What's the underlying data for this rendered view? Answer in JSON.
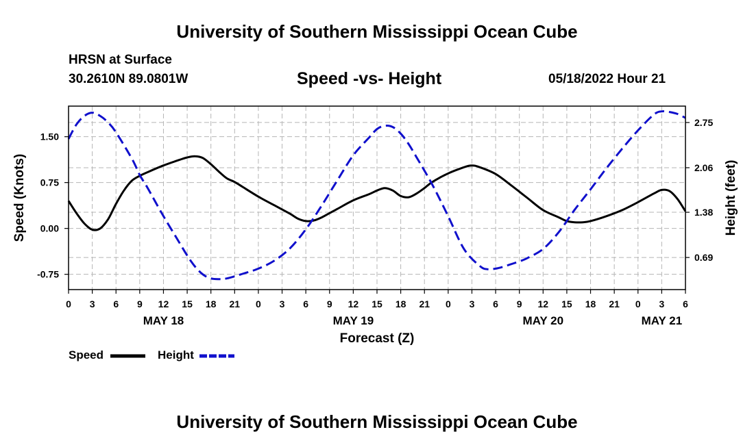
{
  "header": {
    "title": "University of Southern Mississippi Ocean Cube",
    "station": "HRSN at Surface",
    "coords": "30.2610N  89.0801W",
    "subtitle": "Speed -vs- Height",
    "datetime": "05/18/2022 Hour 21"
  },
  "footer": {
    "title": "University of Southern Mississippi Ocean Cube"
  },
  "legend": {
    "speed_label": "Speed",
    "height_label": "Height"
  },
  "chart_data": {
    "type": "line",
    "title": "Speed -vs- Height",
    "xlabel": "Forecast (Z)",
    "ylabel_left": "Speed (Knots)",
    "ylabel_right": "Height (feet)",
    "x_unit": "hours since 00Z May 18",
    "xlim": [
      0,
      78
    ],
    "ylim_left": [
      -1.0,
      2.0
    ],
    "ylim_right": [
      0.2,
      3.0
    ],
    "x_ticks": [
      {
        "x": 0,
        "label": "0"
      },
      {
        "x": 3,
        "label": "3"
      },
      {
        "x": 6,
        "label": "6"
      },
      {
        "x": 9,
        "label": "9"
      },
      {
        "x": 12,
        "label": "12"
      },
      {
        "x": 15,
        "label": "15"
      },
      {
        "x": 18,
        "label": "18"
      },
      {
        "x": 21,
        "label": "21"
      },
      {
        "x": 24,
        "label": "0"
      },
      {
        "x": 27,
        "label": "3"
      },
      {
        "x": 30,
        "label": "6"
      },
      {
        "x": 33,
        "label": "9"
      },
      {
        "x": 36,
        "label": "12"
      },
      {
        "x": 39,
        "label": "15"
      },
      {
        "x": 42,
        "label": "18"
      },
      {
        "x": 45,
        "label": "21"
      },
      {
        "x": 48,
        "label": "0"
      },
      {
        "x": 51,
        "label": "3"
      },
      {
        "x": 54,
        "label": "6"
      },
      {
        "x": 57,
        "label": "9"
      },
      {
        "x": 60,
        "label": "12"
      },
      {
        "x": 63,
        "label": "15"
      },
      {
        "x": 66,
        "label": "18"
      },
      {
        "x": 69,
        "label": "21"
      },
      {
        "x": 72,
        "label": "0"
      },
      {
        "x": 75,
        "label": "3"
      },
      {
        "x": 78,
        "label": "6"
      }
    ],
    "day_labels": [
      {
        "x": 12,
        "label": "MAY 18"
      },
      {
        "x": 36,
        "label": "MAY 19"
      },
      {
        "x": 60,
        "label": "MAY 20"
      },
      {
        "x": 75,
        "label": "MAY 21"
      }
    ],
    "y_ticks_left": [
      {
        "v": -0.75,
        "label": "-0.75"
      },
      {
        "v": 0.0,
        "label": "0.00"
      },
      {
        "v": 0.75,
        "label": "0.75"
      },
      {
        "v": 1.5,
        "label": "1.50"
      }
    ],
    "y_ticks_right": [
      {
        "v": 0.69,
        "label": "0.69"
      },
      {
        "v": 1.38,
        "label": "1.38"
      },
      {
        "v": 2.06,
        "label": "2.06"
      },
      {
        "v": 2.75,
        "label": "2.75"
      }
    ],
    "grid": true,
    "series": [
      {
        "name": "Speed",
        "axis": "left",
        "color": "#000000",
        "dash": "solid",
        "x": [
          0,
          1,
          2,
          3,
          4,
          5,
          6,
          7,
          8,
          9,
          10,
          12,
          14,
          15,
          16,
          17,
          18,
          19,
          20,
          21,
          22,
          24,
          26,
          28,
          29,
          30,
          31,
          32,
          33,
          34,
          36,
          38,
          39,
          40,
          41,
          42,
          43,
          44,
          45,
          46,
          48,
          50,
          51,
          52,
          54,
          56,
          58,
          60,
          62,
          63,
          64,
          65,
          66,
          68,
          70,
          72,
          74,
          75,
          76,
          77,
          78
        ],
        "values": [
          0.45,
          0.25,
          0.08,
          -0.02,
          0.0,
          0.15,
          0.4,
          0.62,
          0.78,
          0.86,
          0.92,
          1.03,
          1.12,
          1.16,
          1.18,
          1.15,
          1.05,
          0.93,
          0.82,
          0.76,
          0.68,
          0.52,
          0.38,
          0.24,
          0.16,
          0.12,
          0.13,
          0.18,
          0.25,
          0.32,
          0.46,
          0.56,
          0.62,
          0.66,
          0.62,
          0.53,
          0.51,
          0.57,
          0.66,
          0.76,
          0.9,
          1.0,
          1.03,
          1.0,
          0.89,
          0.7,
          0.5,
          0.3,
          0.18,
          0.12,
          0.1,
          0.1,
          0.12,
          0.2,
          0.3,
          0.43,
          0.57,
          0.63,
          0.61,
          0.48,
          0.28
        ]
      },
      {
        "name": "Height",
        "axis": "right",
        "color": "#1010cc",
        "dash": "dashed",
        "x": [
          0,
          1,
          2,
          3,
          4,
          5,
          6,
          8,
          9,
          10,
          12,
          14,
          15,
          16,
          17,
          18,
          19,
          20,
          22,
          24,
          26,
          28,
          30,
          32,
          34,
          36,
          38,
          39,
          40,
          41,
          42,
          43,
          44,
          46,
          48,
          50,
          52,
          53,
          54,
          55,
          56,
          57,
          58,
          60,
          62,
          64,
          66,
          68,
          70,
          72,
          74,
          75,
          76,
          77,
          78
        ],
        "values": [
          2.5,
          2.72,
          2.85,
          2.9,
          2.85,
          2.75,
          2.6,
          2.2,
          1.95,
          1.75,
          1.32,
          0.92,
          0.72,
          0.55,
          0.43,
          0.37,
          0.36,
          0.37,
          0.44,
          0.52,
          0.64,
          0.83,
          1.12,
          1.48,
          1.87,
          2.25,
          2.52,
          2.65,
          2.7,
          2.68,
          2.58,
          2.42,
          2.22,
          1.8,
          1.32,
          0.82,
          0.56,
          0.51,
          0.52,
          0.55,
          0.59,
          0.63,
          0.68,
          0.82,
          1.08,
          1.42,
          1.73,
          2.05,
          2.35,
          2.63,
          2.87,
          2.92,
          2.91,
          2.88,
          2.82
        ]
      }
    ]
  }
}
